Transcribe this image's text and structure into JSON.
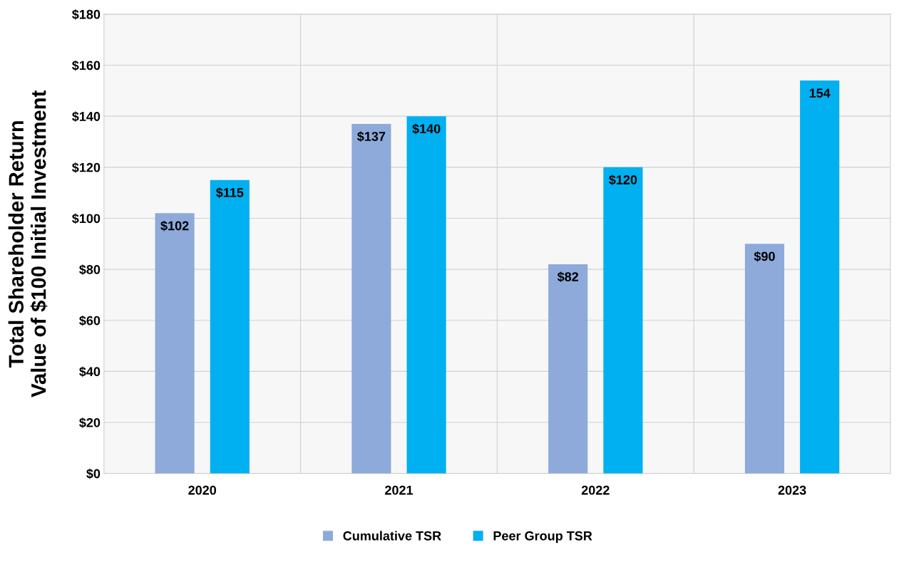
{
  "chart_data": {
    "type": "bar",
    "ylabel": "Total Shareholder Return\nValue of $100 Initial Investment",
    "categories": [
      "2020",
      "2021",
      "2022",
      "2023"
    ],
    "series": [
      {
        "name": "Cumulative TSR",
        "color": "#8eaadb",
        "values": [
          102,
          137,
          82,
          90
        ],
        "value_labels": [
          "$102",
          "$137",
          "$82",
          "$90"
        ]
      },
      {
        "name": "Peer Group TSR",
        "color": "#00b0f0",
        "values": [
          115,
          140,
          120,
          154
        ],
        "value_labels": [
          "$115",
          "$140",
          "$120",
          "154"
        ]
      }
    ],
    "ylim": [
      0,
      180
    ],
    "yticks": [
      {
        "value": 0,
        "label": "$0"
      },
      {
        "value": 20,
        "label": "$20"
      },
      {
        "value": 40,
        "label": "$40"
      },
      {
        "value": 60,
        "label": "$60"
      },
      {
        "value": 80,
        "label": "$80"
      },
      {
        "value": 100,
        "label": "$100"
      },
      {
        "value": 120,
        "label": "$120"
      },
      {
        "value": 140,
        "label": "$140"
      },
      {
        "value": 160,
        "label": "$160"
      },
      {
        "value": 180,
        "label": "$180"
      }
    ],
    "grid": true,
    "legend": "bottom"
  }
}
